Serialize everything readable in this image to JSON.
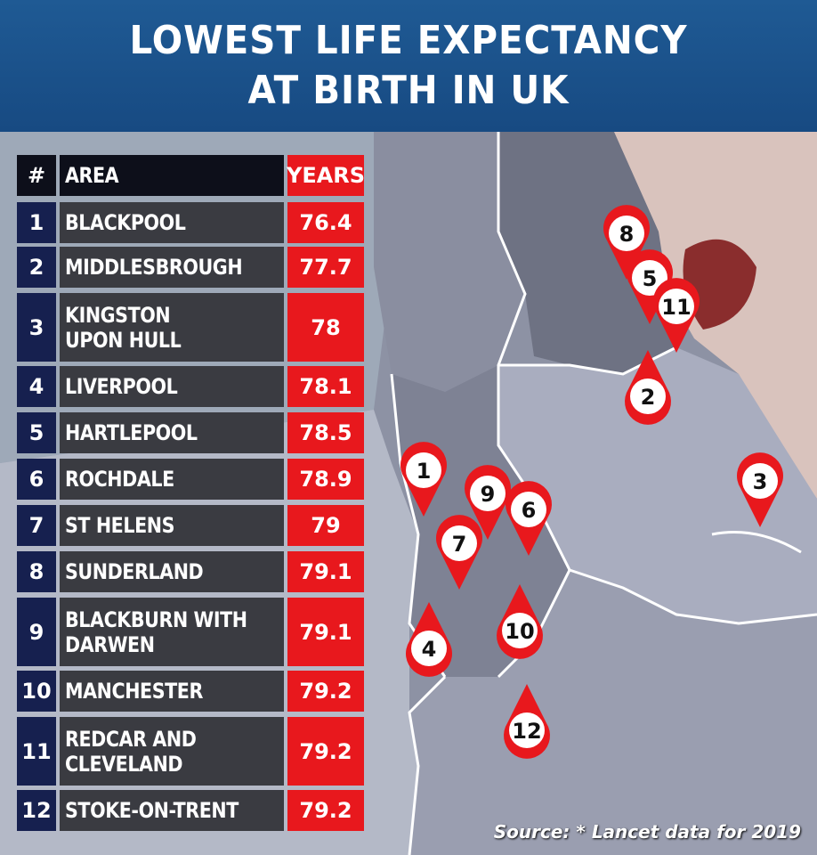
{
  "title": {
    "line1": "LOWEST LIFE EXPECTANCY",
    "line2": "AT BIRTH IN UK"
  },
  "table": {
    "headers": {
      "rank": "#",
      "area": "AREA",
      "years": "YEARS"
    },
    "rows": [
      {
        "rank": "1",
        "area": "BLACKPOOL",
        "years": "76.4"
      },
      {
        "rank": "2",
        "area": "MIDDLESBROUGH",
        "years": "77.7"
      },
      {
        "rank": "3",
        "area": "KINGSTON\nUPON HULL",
        "years": "78"
      },
      {
        "rank": "4",
        "area": "LIVERPOOL",
        "years": "78.1"
      },
      {
        "rank": "5",
        "area": "HARTLEPOOL",
        "years": "78.5"
      },
      {
        "rank": "6",
        "area": "ROCHDALE",
        "years": "78.9"
      },
      {
        "rank": "7",
        "area": "ST HELENS",
        "years": "79"
      },
      {
        "rank": "8",
        "area": "SUNDERLAND",
        "years": "79.1"
      },
      {
        "rank": "9",
        "area": "BLACKBURN WITH\nDARWEN",
        "years": "79.1"
      },
      {
        "rank": "10",
        "area": "MANCHESTER",
        "years": "79.2"
      },
      {
        "rank": "11",
        "area": "REDCAR AND\nCLEVELAND",
        "years": "79.2"
      },
      {
        "rank": "12",
        "area": "STOKE-ON-TRENT",
        "years": "79.2"
      }
    ]
  },
  "map_markers": [
    "1",
    "2",
    "3",
    "4",
    "5",
    "6",
    "7",
    "8",
    "9",
    "10",
    "11",
    "12"
  ],
  "source": "Source: * Lancet data for 2019",
  "colors": {
    "header_blue": "#1f5a94",
    "rank_navy": "#16204f",
    "area_grey": "#3a3b41",
    "years_red": "#e8181d",
    "pin_red": "#e8181d",
    "map_dark": "#6e7283",
    "map_light": "#a9adbf"
  }
}
